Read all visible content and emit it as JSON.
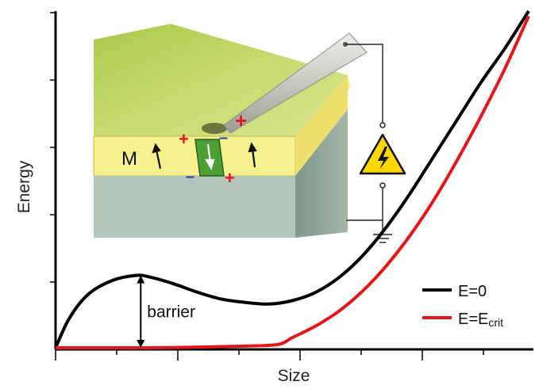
{
  "chart_data": {
    "type": "line",
    "title": "",
    "xlabel": "Size",
    "ylabel": "Energy",
    "xlim": [
      0,
      1
    ],
    "ylim": [
      0,
      1
    ],
    "grid": false,
    "legend_position": "bottom-right",
    "series": [
      {
        "name": "E=0",
        "color": "#000000",
        "x": [
          0.0,
          0.03,
          0.07,
          0.12,
          0.17,
          0.2,
          0.25,
          0.3,
          0.35,
          0.4,
          0.45,
          0.5,
          0.55,
          0.6,
          0.65,
          0.7,
          0.75,
          0.8,
          0.85,
          0.9,
          0.95,
          1.0
        ],
        "values": [
          0.0,
          0.09,
          0.16,
          0.2,
          0.215,
          0.21,
          0.19,
          0.165,
          0.145,
          0.135,
          0.13,
          0.14,
          0.165,
          0.21,
          0.275,
          0.36,
          0.46,
          0.57,
          0.68,
          0.79,
          0.89,
          1.0
        ]
      },
      {
        "name": "E=Ecrit",
        "color": "#e3161b",
        "x": [
          0.0,
          0.2,
          0.3,
          0.4,
          0.47,
          0.5,
          0.55,
          0.6,
          0.65,
          0.7,
          0.75,
          0.8,
          0.85,
          0.9,
          0.95,
          1.0
        ],
        "values": [
          0.0,
          0.0,
          0.002,
          0.005,
          0.01,
          0.03,
          0.065,
          0.11,
          0.17,
          0.245,
          0.335,
          0.44,
          0.56,
          0.69,
          0.83,
          0.985
        ]
      }
    ],
    "annotations": [
      {
        "text": "barrier",
        "x": 0.18,
        "y_range": [
          0.0,
          0.215
        ]
      }
    ]
  },
  "inset": {
    "layer_label": "M",
    "plus": "+",
    "minus": "–",
    "icons": [
      "probe-tip-icon",
      "voltage-warning-icon",
      "ground-icon",
      "magnetization-arrow-icon"
    ]
  },
  "legend": {
    "items": [
      {
        "label_main": "E=E",
        "label_sub": ""
      },
      {
        "label_main": "E=E",
        "label_sub": "crit"
      }
    ]
  }
}
